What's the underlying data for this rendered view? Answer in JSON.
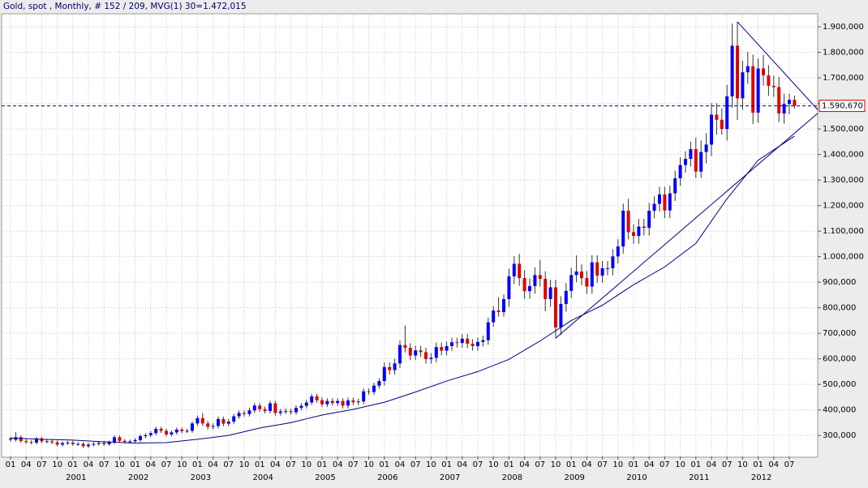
{
  "chart_data": {
    "type": "candlestick",
    "title": "Gold, spot , Monthly, # 152 / 209, MVG(1) 30=1.472,015",
    "categories": [
      "2000-01",
      "2000-02",
      "2000-03",
      "2000-04",
      "2000-05",
      "2000-06",
      "2000-07",
      "2000-08",
      "2000-09",
      "2000-10",
      "2000-11",
      "2000-12",
      "2001-01",
      "2001-02",
      "2001-03",
      "2001-04",
      "2001-05",
      "2001-06",
      "2001-07",
      "2001-08",
      "2001-09",
      "2001-10",
      "2001-11",
      "2001-12",
      "2002-01",
      "2002-02",
      "2002-03",
      "2002-04",
      "2002-05",
      "2002-06",
      "2002-07",
      "2002-08",
      "2002-09",
      "2002-10",
      "2002-11",
      "2002-12",
      "2003-01",
      "2003-02",
      "2003-03",
      "2003-04",
      "2003-05",
      "2003-06",
      "2003-07",
      "2003-08",
      "2003-09",
      "2003-10",
      "2003-11",
      "2003-12",
      "2004-01",
      "2004-02",
      "2004-03",
      "2004-04",
      "2004-05",
      "2004-06",
      "2004-07",
      "2004-08",
      "2004-09",
      "2004-10",
      "2004-11",
      "2004-12",
      "2005-01",
      "2005-02",
      "2005-03",
      "2005-04",
      "2005-05",
      "2005-06",
      "2005-07",
      "2005-08",
      "2005-09",
      "2005-10",
      "2005-11",
      "2005-12",
      "2006-01",
      "2006-02",
      "2006-03",
      "2006-04",
      "2006-05",
      "2006-06",
      "2006-07",
      "2006-08",
      "2006-09",
      "2006-10",
      "2006-11",
      "2006-12",
      "2007-01",
      "2007-02",
      "2007-03",
      "2007-04",
      "2007-05",
      "2007-06",
      "2007-07",
      "2007-08",
      "2007-09",
      "2007-10",
      "2007-11",
      "2007-12",
      "2008-01",
      "2008-02",
      "2008-03",
      "2008-04",
      "2008-05",
      "2008-06",
      "2008-07",
      "2008-08",
      "2008-09",
      "2008-10",
      "2008-11",
      "2008-12",
      "2009-01",
      "2009-02",
      "2009-03",
      "2009-04",
      "2009-05",
      "2009-06",
      "2009-07",
      "2009-08",
      "2009-09",
      "2009-10",
      "2009-11",
      "2009-12",
      "2010-01",
      "2010-02",
      "2010-03",
      "2010-04",
      "2010-05",
      "2010-06",
      "2010-07",
      "2010-08",
      "2010-09",
      "2010-10",
      "2010-11",
      "2010-12",
      "2011-01",
      "2011-02",
      "2011-03",
      "2011-04",
      "2011-05",
      "2011-06",
      "2011-07",
      "2011-08",
      "2011-09",
      "2011-10",
      "2011-11",
      "2011-12",
      "2012-01",
      "2012-02",
      "2012-03",
      "2012-04",
      "2012-05",
      "2012-06",
      "2012-07",
      "2012-08"
    ],
    "open": [
      288,
      283,
      293,
      278,
      274,
      272,
      288,
      277,
      277,
      273,
      264,
      270,
      272,
      266,
      267,
      258,
      264,
      267,
      271,
      266,
      273,
      293,
      279,
      275,
      277,
      282,
      297,
      301,
      309,
      326,
      318,
      304,
      312,
      323,
      317,
      318,
      347,
      368,
      347,
      334,
      337,
      364,
      346,
      354,
      375,
      388,
      384,
      398,
      417,
      403,
      396,
      426,
      388,
      394,
      395,
      391,
      408,
      416,
      429,
      453,
      438,
      422,
      435,
      427,
      435,
      417,
      437,
      430,
      433,
      473,
      470,
      495,
      513,
      568,
      556,
      582,
      654,
      643,
      613,
      633,
      626,
      599,
      604,
      646,
      632,
      650,
      665,
      662,
      679,
      659,
      650,
      666,
      673,
      743,
      789,
      783,
      834,
      923,
      972,
      916,
      865,
      885,
      928,
      913,
      834,
      880,
      723,
      815,
      866,
      928,
      942,
      916,
      883,
      978,
      926,
      955,
      955,
      1001,
      1040,
      1180,
      1096,
      1081,
      1118,
      1113,
      1180,
      1207,
      1244,
      1181,
      1248,
      1307,
      1359,
      1383,
      1421,
      1333,
      1410,
      1439,
      1556,
      1536,
      1500,
      1628,
      1826,
      1620,
      1722,
      1746,
      1564,
      1737,
      1710,
      1669,
      1664,
      1561,
      1598,
      1614
    ],
    "high": [
      295,
      313,
      300,
      285,
      281,
      295,
      295,
      284,
      284,
      280,
      277,
      279,
      279,
      274,
      274,
      271,
      274,
      278,
      278,
      280,
      300,
      300,
      286,
      284,
      290,
      305,
      309,
      317,
      334,
      334,
      326,
      320,
      331,
      331,
      326,
      355,
      378,
      388,
      357,
      347,
      374,
      374,
      364,
      385,
      398,
      398,
      408,
      427,
      427,
      413,
      436,
      436,
      404,
      405,
      405,
      418,
      426,
      439,
      463,
      463,
      449,
      446,
      446,
      446,
      446,
      448,
      448,
      444,
      484,
      484,
      506,
      524,
      586,
      586,
      600,
      672,
      730,
      661,
      651,
      651,
      644,
      622,
      664,
      664,
      668,
      683,
      683,
      697,
      697,
      677,
      684,
      691,
      761,
      807,
      841,
      852,
      953,
      1002,
      1011,
      946,
      915,
      958,
      988,
      943,
      910,
      910,
      845,
      896,
      956,
      1005,
      970,
      944,
      1006,
      1006,
      983,
      983,
      1029,
      1068,
      1208,
      1227,
      1126,
      1148,
      1148,
      1210,
      1237,
      1274,
      1274,
      1278,
      1337,
      1389,
      1413,
      1451,
      1466,
      1455,
      1484,
      1601,
      1601,
      1581,
      1673,
      1913,
      1920,
      1767,
      1802,
      1791,
      1777,
      1790,
      1750,
      1709,
      1704,
      1638,
      1638,
      1630
    ],
    "low": [
      276,
      276,
      271,
      267,
      265,
      265,
      270,
      270,
      266,
      257,
      257,
      263,
      259,
      259,
      251,
      251,
      257,
      260,
      259,
      259,
      266,
      272,
      268,
      268,
      269,
      274,
      289,
      293,
      301,
      310,
      296,
      296,
      304,
      309,
      309,
      310,
      337,
      337,
      324,
      324,
      327,
      336,
      336,
      344,
      365,
      374,
      374,
      388,
      393,
      386,
      386,
      378,
      378,
      384,
      381,
      381,
      398,
      406,
      419,
      428,
      411,
      411,
      416,
      416,
      406,
      406,
      419,
      419,
      422,
      459,
      459,
      484,
      495,
      538,
      538,
      564,
      625,
      595,
      595,
      608,
      581,
      581,
      586,
      614,
      614,
      632,
      644,
      644,
      641,
      632,
      632,
      648,
      655,
      725,
      765,
      765,
      804,
      893,
      886,
      835,
      835,
      855,
      883,
      786,
      804,
      681,
      693,
      785,
      838,
      900,
      888,
      855,
      855,
      898,
      898,
      927,
      927,
      973,
      1012,
      1068,
      1051,
      1051,
      1083,
      1083,
      1150,
      1177,
      1151,
      1151,
      1218,
      1277,
      1329,
      1353,
      1308,
      1308,
      1365,
      1394,
      1478,
      1478,
      1455,
      1583,
      1535,
      1575,
      1677,
      1519,
      1524,
      1670,
      1630,
      1626,
      1527,
      1521,
      1558,
      1580
    ],
    "close": [
      283,
      293,
      278,
      274,
      272,
      288,
      277,
      277,
      273,
      264,
      270,
      272,
      266,
      267,
      258,
      264,
      267,
      271,
      266,
      273,
      293,
      279,
      275,
      277,
      282,
      297,
      301,
      309,
      326,
      318,
      304,
      312,
      323,
      317,
      318,
      347,
      368,
      347,
      334,
      337,
      364,
      346,
      354,
      375,
      388,
      384,
      398,
      417,
      403,
      396,
      426,
      388,
      394,
      395,
      391,
      408,
      416,
      429,
      453,
      438,
      422,
      435,
      427,
      435,
      417,
      437,
      430,
      433,
      473,
      470,
      495,
      513,
      568,
      556,
      582,
      654,
      643,
      613,
      633,
      626,
      599,
      604,
      646,
      632,
      650,
      665,
      662,
      679,
      659,
      650,
      666,
      673,
      743,
      789,
      783,
      834,
      923,
      972,
      916,
      865,
      885,
      928,
      913,
      834,
      880,
      723,
      815,
      866,
      928,
      942,
      916,
      883,
      978,
      926,
      955,
      955,
      1001,
      1040,
      1180,
      1096,
      1081,
      1118,
      1113,
      1180,
      1207,
      1244,
      1181,
      1248,
      1307,
      1359,
      1383,
      1421,
      1333,
      1410,
      1439,
      1556,
      1536,
      1500,
      1628,
      1826,
      1620,
      1722,
      1746,
      1564,
      1737,
      1710,
      1669,
      1664,
      1561,
      1598,
      1614,
      1590.67
    ],
    "up_color": "#0000ff",
    "down_color": "#e00000",
    "moving_average": {
      "color": "#000080",
      "x": [
        "2000-01",
        "2000-07",
        "2001-01",
        "2001-07",
        "2002-01",
        "2002-07",
        "2003-01",
        "2003-07",
        "2004-01",
        "2004-07",
        "2005-01",
        "2005-07",
        "2006-01",
        "2006-07",
        "2007-01",
        "2007-07",
        "2008-01",
        "2008-07",
        "2009-01",
        "2009-07",
        "2010-01",
        "2010-07",
        "2011-01",
        "2011-07",
        "2012-01",
        "2012-08"
      ],
      "values": [
        290,
        285,
        282,
        275,
        270,
        272,
        285,
        300,
        329,
        350,
        380,
        402,
        430,
        470,
        513,
        550,
        598,
        670,
        750,
        810,
        890,
        960,
        1052,
        1227,
        1378,
        1472.015
      ]
    },
    "trendlines": [
      {
        "color": "#000080",
        "x": [
          105,
          155.5
        ],
        "values": [
          681,
          1562
        ]
      },
      {
        "color": "#000080",
        "x": [
          140,
          155.5
        ],
        "values": [
          1920,
          1575
        ]
      }
    ],
    "last_line": {
      "value": 1590.67,
      "label": "1.590,670",
      "color": "#000080",
      "box_color": "#e00000"
    },
    "ylim": [
      218,
      1948
    ],
    "yticks": [
      {
        "value": 300,
        "label": "300,000"
      },
      {
        "value": 400,
        "label": "400,000"
      },
      {
        "value": 500,
        "label": "500,000"
      },
      {
        "value": 600,
        "label": "600,000"
      },
      {
        "value": 700,
        "label": "700,000"
      },
      {
        "value": 800,
        "label": "800,000"
      },
      {
        "value": 900,
        "label": "900,000"
      },
      {
        "value": 1000,
        "label": "1.000,000"
      },
      {
        "value": 1100,
        "label": "1.100,000"
      },
      {
        "value": 1200,
        "label": "1.200,000"
      },
      {
        "value": 1300,
        "label": "1.300,000"
      },
      {
        "value": 1400,
        "label": "1.400,000"
      },
      {
        "value": 1500,
        "label": "1.500,000"
      },
      {
        "value": 1600,
        "label": "1.600,000"
      },
      {
        "value": 1700,
        "label": "1.700,000"
      },
      {
        "value": 1800,
        "label": "1.800,000"
      },
      {
        "value": 1900,
        "label": "1.900,000"
      }
    ],
    "xticks": [
      {
        "value": "2000-01",
        "label": "01"
      },
      {
        "value": "2000-04",
        "label": "04"
      },
      {
        "value": "2000-07",
        "label": "07"
      },
      {
        "value": "2000-10",
        "label": "10"
      },
      {
        "value": "2001-01",
        "label": "01"
      },
      {
        "value": "2001-04",
        "label": "04"
      },
      {
        "value": "2001-07",
        "label": "07"
      },
      {
        "value": "2001-10",
        "label": "10"
      },
      {
        "value": "2002-01",
        "label": "01"
      },
      {
        "value": "2002-04",
        "label": "04"
      },
      {
        "value": "2002-07",
        "label": "07"
      },
      {
        "value": "2002-10",
        "label": "10"
      },
      {
        "value": "2003-01",
        "label": "01"
      },
      {
        "value": "2003-04",
        "label": "04"
      },
      {
        "value": "2003-07",
        "label": "07"
      },
      {
        "value": "2003-10",
        "label": "10"
      },
      {
        "value": "2004-01",
        "label": "01"
      },
      {
        "value": "2004-04",
        "label": "04"
      },
      {
        "value": "2004-07",
        "label": "07"
      },
      {
        "value": "2004-10",
        "label": "10"
      },
      {
        "value": "2005-01",
        "label": "01"
      },
      {
        "value": "2005-04",
        "label": "04"
      },
      {
        "value": "2005-07",
        "label": "07"
      },
      {
        "value": "2005-10",
        "label": "10"
      },
      {
        "value": "2006-01",
        "label": "01"
      },
      {
        "value": "2006-04",
        "label": "04"
      },
      {
        "value": "2006-07",
        "label": "07"
      },
      {
        "value": "2006-10",
        "label": "10"
      },
      {
        "value": "2007-01",
        "label": "01"
      },
      {
        "value": "2007-04",
        "label": "04"
      },
      {
        "value": "2007-07",
        "label": "07"
      },
      {
        "value": "2007-10",
        "label": "10"
      },
      {
        "value": "2008-01",
        "label": "01"
      },
      {
        "value": "2008-04",
        "label": "04"
      },
      {
        "value": "2008-07",
        "label": "07"
      },
      {
        "value": "2008-10",
        "label": "10"
      },
      {
        "value": "2009-01",
        "label": "01"
      },
      {
        "value": "2009-04",
        "label": "04"
      },
      {
        "value": "2009-07",
        "label": "07"
      },
      {
        "value": "2009-10",
        "label": "10"
      },
      {
        "value": "2010-01",
        "label": "01"
      },
      {
        "value": "2010-04",
        "label": "04"
      },
      {
        "value": "2010-07",
        "label": "07"
      },
      {
        "value": "2010-10",
        "label": "10"
      },
      {
        "value": "2011-01",
        "label": "01"
      },
      {
        "value": "2011-04",
        "label": "04"
      },
      {
        "value": "2011-07",
        "label": "07"
      },
      {
        "value": "2011-10",
        "label": "10"
      },
      {
        "value": "2012-01",
        "label": "01"
      },
      {
        "value": "2012-04",
        "label": "04"
      },
      {
        "value": "2012-07",
        "label": "07"
      }
    ],
    "year_ticks": [
      {
        "value": "2001-01",
        "label": "2001"
      },
      {
        "value": "2002-01",
        "label": "2002"
      },
      {
        "value": "2003-01",
        "label": "2003"
      },
      {
        "value": "2004-01",
        "label": "2004"
      },
      {
        "value": "2005-01",
        "label": "2005"
      },
      {
        "value": "2006-01",
        "label": "2006"
      },
      {
        "value": "2007-01",
        "label": "2007"
      },
      {
        "value": "2008-01",
        "label": "2008"
      },
      {
        "value": "2009-01",
        "label": "2009"
      },
      {
        "value": "2010-01",
        "label": "2010"
      },
      {
        "value": "2011-01",
        "label": "2011"
      },
      {
        "value": "2012-01",
        "label": "2012"
      }
    ],
    "grid": true
  }
}
